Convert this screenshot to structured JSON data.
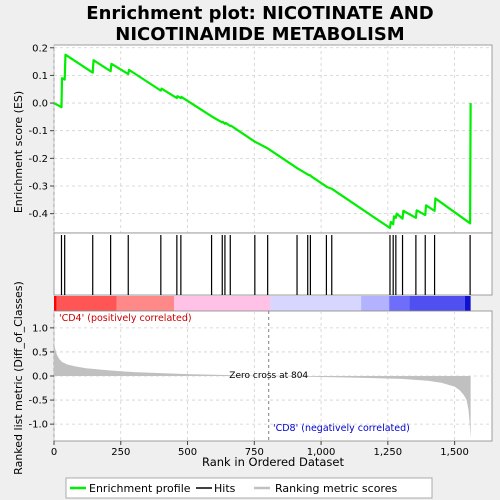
{
  "chart_data": {
    "type": "line",
    "title": "Enrichment plot: NICOTINATE AND NICOTINAMIDE METABOLISM",
    "title_lines": [
      "Enrichment plot: NICOTINATE AND",
      "NICOTINAMIDE METABOLISM"
    ],
    "es_panel": {
      "ylabel": "Enrichment score (ES)",
      "ylim": [
        -0.47,
        0.21
      ],
      "yticks": [
        0.2,
        0.1,
        0.0,
        -0.1,
        -0.2,
        -0.3,
        -0.4
      ],
      "ytick_labels": [
        "0.2",
        "0.1",
        "0.0",
        "-0.1",
        "-0.2",
        "-0.3",
        "-0.4"
      ],
      "grid": true,
      "color": "#00ee00",
      "series": [
        {
          "name": "Enrichment profile",
          "x": [
            0,
            28,
            30,
            40,
            43,
            145,
            148,
            212,
            215,
            278,
            281,
            400,
            403,
            460,
            462,
            475,
            477,
            590,
            593,
            630,
            632,
            640,
            643,
            660,
            663,
            752,
            755,
            800,
            803,
            910,
            913,
            950,
            953,
            960,
            963,
            1020,
            1023,
            1040,
            1043,
            1258,
            1261,
            1270,
            1273,
            1280,
            1283,
            1305,
            1308,
            1355,
            1358,
            1390,
            1393,
            1425,
            1428,
            1558,
            1560
          ],
          "y": [
            0.0,
            -0.015,
            0.09,
            0.085,
            0.175,
            0.11,
            0.155,
            0.115,
            0.142,
            0.105,
            0.12,
            0.045,
            0.052,
            0.018,
            0.025,
            0.018,
            0.022,
            -0.048,
            -0.05,
            -0.07,
            -0.068,
            -0.075,
            -0.072,
            -0.083,
            -0.082,
            -0.14,
            -0.141,
            -0.164,
            -0.166,
            -0.235,
            -0.237,
            -0.258,
            -0.26,
            -0.262,
            -0.265,
            -0.302,
            -0.304,
            -0.31,
            -0.312,
            -0.452,
            -0.43,
            -0.438,
            -0.41,
            -0.415,
            -0.4,
            -0.418,
            -0.39,
            -0.415,
            -0.388,
            -0.405,
            -0.37,
            -0.39,
            -0.345,
            -0.435,
            0.0
          ]
        }
      ]
    },
    "hits": {
      "name": "Hits",
      "x": [
        28,
        40,
        145,
        212,
        278,
        400,
        460,
        475,
        590,
        630,
        640,
        660,
        752,
        800,
        910,
        950,
        960,
        1020,
        1040,
        1258,
        1270,
        1280,
        1305,
        1355,
        1390,
        1425,
        1558
      ]
    },
    "ranked_metric": {
      "name": "Ranking metric scores",
      "xlabel": "Rank in Ordered Dataset",
      "ylabel": "Ranked list metric (Diff_of_Classes)",
      "xlim": [
        0,
        1640
      ],
      "xticks": [
        0,
        250,
        500,
        750,
        1000,
        1250,
        1500
      ],
      "xtick_labels": [
        "0",
        "250",
        "500",
        "750",
        "1,000",
        "1,250",
        "1,500"
      ],
      "ylim": [
        -1.35,
        1.35
      ],
      "yticks": [
        1.0,
        0.5,
        0.0,
        -0.5,
        -1.0
      ],
      "ytick_labels": [
        "1.0",
        "0.5",
        "0.0",
        "-0.5",
        "-1.0"
      ],
      "color": "#c0c0c0",
      "curve_x": [
        0,
        5,
        10,
        20,
        30,
        50,
        80,
        120,
        200,
        300,
        400,
        500,
        600,
        700,
        804,
        900,
        1000,
        1100,
        1200,
        1300,
        1400,
        1450,
        1500,
        1520,
        1535,
        1545,
        1552,
        1556,
        1560
      ],
      "curve_y": [
        0.7,
        0.55,
        0.45,
        0.35,
        0.29,
        0.24,
        0.2,
        0.16,
        0.12,
        0.08,
        0.06,
        0.04,
        0.025,
        0.012,
        0.0,
        -0.01,
        -0.02,
        -0.03,
        -0.045,
        -0.06,
        -0.1,
        -0.14,
        -0.22,
        -0.3,
        -0.4,
        -0.5,
        -0.7,
        -0.95,
        -1.3
      ]
    },
    "zero_cross": {
      "x": 804,
      "label": "Zero cross at 804"
    },
    "class_labels": {
      "positive": "'CD4' (positively correlated)",
      "negative": "'CD8' (negatively correlated)"
    },
    "gradient_segments": [
      {
        "from": 0,
        "to": 10,
        "color": "#ff0000"
      },
      {
        "from": 10,
        "to": 235,
        "color": "#ff5555"
      },
      {
        "from": 235,
        "to": 450,
        "color": "#ff8888"
      },
      {
        "from": 450,
        "to": 810,
        "color": "#ffc2e6"
      },
      {
        "from": 810,
        "to": 1150,
        "color": "#d6d6ff"
      },
      {
        "from": 1150,
        "to": 1255,
        "color": "#b2b2ff"
      },
      {
        "from": 1255,
        "to": 1330,
        "color": "#6e6efa"
      },
      {
        "from": 1330,
        "to": 1538,
        "color": "#5050f0"
      },
      {
        "from": 1538,
        "to": 1560,
        "color": "#1010d0"
      }
    ],
    "legend": {
      "position": "bottom",
      "items": [
        {
          "label": "Enrichment profile",
          "color": "#00ee00"
        },
        {
          "label": "Hits",
          "color": "#000000"
        },
        {
          "label": "Ranking metric scores",
          "color": "#c0c0c0"
        }
      ]
    }
  }
}
